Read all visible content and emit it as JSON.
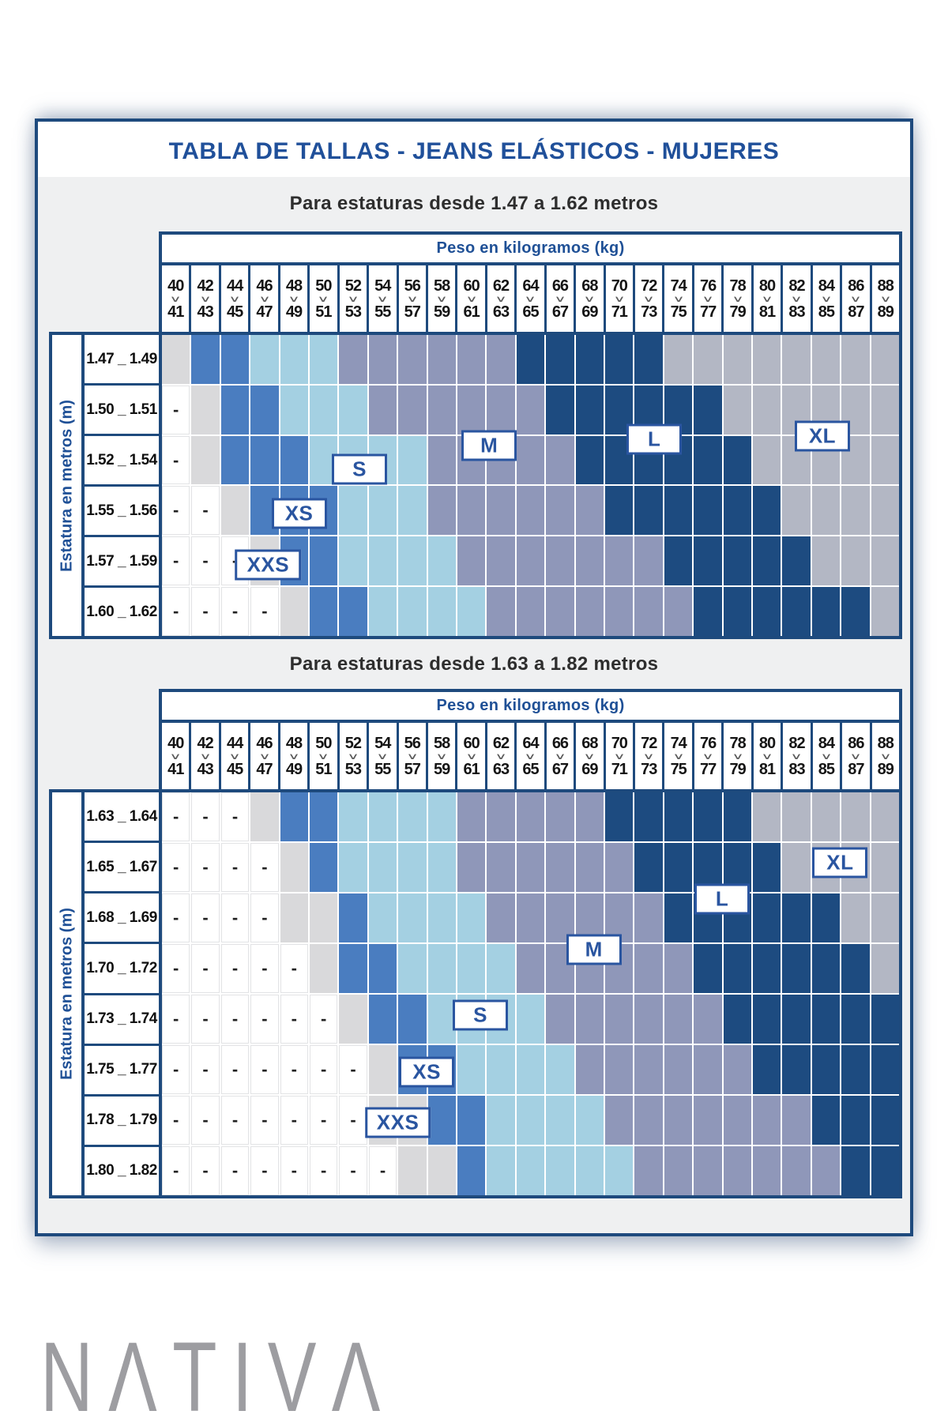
{
  "card": {
    "title": "TABLA DE TALLAS - JEANS ELÁSTICOS - MUJERES"
  },
  "palette": {
    "border_navy": "#1e4a7d",
    "title_navy": "#20509a",
    "label_navy": "#2a55a0",
    "body_gray": "#eff0f1",
    "logo_gray": "#9d9da1"
  },
  "cell_colors": {
    "W": "#ffffff",
    "G": "#d9d9db",
    "B": "#4a7dc0",
    "C": "#a4d0e2",
    "S": "#8f97b9",
    "N": "#1d4b80",
    "Y": "#b3b7c4"
  },
  "cell_meaning": {
    "W": "fuera de rango (-)",
    "G": "límite",
    "B": "XXS / XS",
    "C": "S",
    "S": "M",
    "N": "L",
    "Y": "XL"
  },
  "sizes": [
    "XXS",
    "XS",
    "S",
    "M",
    "L",
    "XL"
  ],
  "weights": [
    [
      "40",
      "41"
    ],
    [
      "42",
      "43"
    ],
    [
      "44",
      "45"
    ],
    [
      "46",
      "47"
    ],
    [
      "48",
      "49"
    ],
    [
      "50",
      "51"
    ],
    [
      "52",
      "53"
    ],
    [
      "54",
      "55"
    ],
    [
      "56",
      "57"
    ],
    [
      "58",
      "59"
    ],
    [
      "60",
      "61"
    ],
    [
      "62",
      "63"
    ],
    [
      "64",
      "65"
    ],
    [
      "66",
      "67"
    ],
    [
      "68",
      "69"
    ],
    [
      "70",
      "71"
    ],
    [
      "72",
      "73"
    ],
    [
      "74",
      "75"
    ],
    [
      "76",
      "77"
    ],
    [
      "78",
      "79"
    ],
    [
      "80",
      "81"
    ],
    [
      "82",
      "83"
    ],
    [
      "84",
      "85"
    ],
    [
      "86",
      "87"
    ],
    [
      "88",
      "89"
    ]
  ],
  "tables": [
    {
      "subtitle": "Para estaturas desde 1.47 a 1.62 metros",
      "weight_header": "Peso en kilogramos (kg)",
      "height_axis": "Estatura en metros (m)",
      "rows": [
        {
          "label": "1.47 _ 1.49",
          "cells": "GBBCCCSSSSSSNNNNNYYYYYYYY"
        },
        {
          "label": "1.50 _ 1.51",
          "cells": "WGBBCCCSSSSSSNNNNNNYYYYYY"
        },
        {
          "label": "1.52 _ 1.54",
          "cells": "WGBBBCCCCSSSSSNNNNNNYYYYY"
        },
        {
          "label": "1.55 _ 1.56",
          "cells": "WWGBBBCCCSSSSSSNNNNNNYYYY"
        },
        {
          "label": "1.57 _ 1.59",
          "cells": "WWWGBBCCCCSSSSSSSNNNNNYYY"
        },
        {
          "label": "1.60 _ 1.62",
          "cells": "WWWWGBBCCCCSSSSSSSNNNNNNY"
        }
      ],
      "labels": [
        {
          "text": "XXS",
          "col": 3.6,
          "row": 4.58
        },
        {
          "text": "XS",
          "col": 4.65,
          "row": 3.56
        },
        {
          "text": "S",
          "col": 6.7,
          "row": 2.68
        },
        {
          "text": "M",
          "col": 11.1,
          "row": 2.2
        },
        {
          "text": "L",
          "col": 16.7,
          "row": 2.08
        },
        {
          "text": "XL",
          "col": 22.4,
          "row": 2.02
        }
      ]
    },
    {
      "subtitle": "Para estaturas desde 1.63 a 1.82 metros",
      "weight_header": "Peso en kilogramos (kg)",
      "height_axis": "Estatura en metros (m)",
      "rows": [
        {
          "label": "1.63 _ 1.64",
          "cells": "WWWGBBCCCCSSSSSNNNNNYYYYY"
        },
        {
          "label": "1.65 _ 1.67",
          "cells": "WWWWGBCCCCSSSSSSNNNNNYYYY"
        },
        {
          "label": "1.68 _ 1.69",
          "cells": "WWWWGGBCCCCSSSSSSNNNNNNYY"
        },
        {
          "label": "1.70 _ 1.72",
          "cells": "WWWWWGBBCCCCSSSSSSNNNNNNY"
        },
        {
          "label": "1.73 _ 1.74",
          "cells": "WWWWWWGBBCCCCSSSSSSNNNNNN"
        },
        {
          "label": "1.75 _ 1.77",
          "cells": "WWWWWWWGBBCCCCSSSSSSNNNNN"
        },
        {
          "label": "1.78 _ 1.79",
          "cells": "WWWWWWWGGBBCCCCSSSSSSSNNN"
        },
        {
          "label": "1.80 _ 1.82",
          "cells": "WWWWWWWWGGBCCCCCSSSSSSSNN"
        }
      ],
      "labels": [
        {
          "text": "XXS",
          "col": 8.0,
          "row": 6.56
        },
        {
          "text": "XS",
          "col": 8.98,
          "row": 5.55
        },
        {
          "text": "S",
          "col": 10.8,
          "row": 4.42
        },
        {
          "text": "M",
          "col": 14.65,
          "row": 3.12
        },
        {
          "text": "L",
          "col": 19.0,
          "row": 2.12
        },
        {
          "text": "XL",
          "col": 23.0,
          "row": 1.39
        }
      ]
    }
  ],
  "logo": {
    "text": "NΛTIVΛ"
  }
}
